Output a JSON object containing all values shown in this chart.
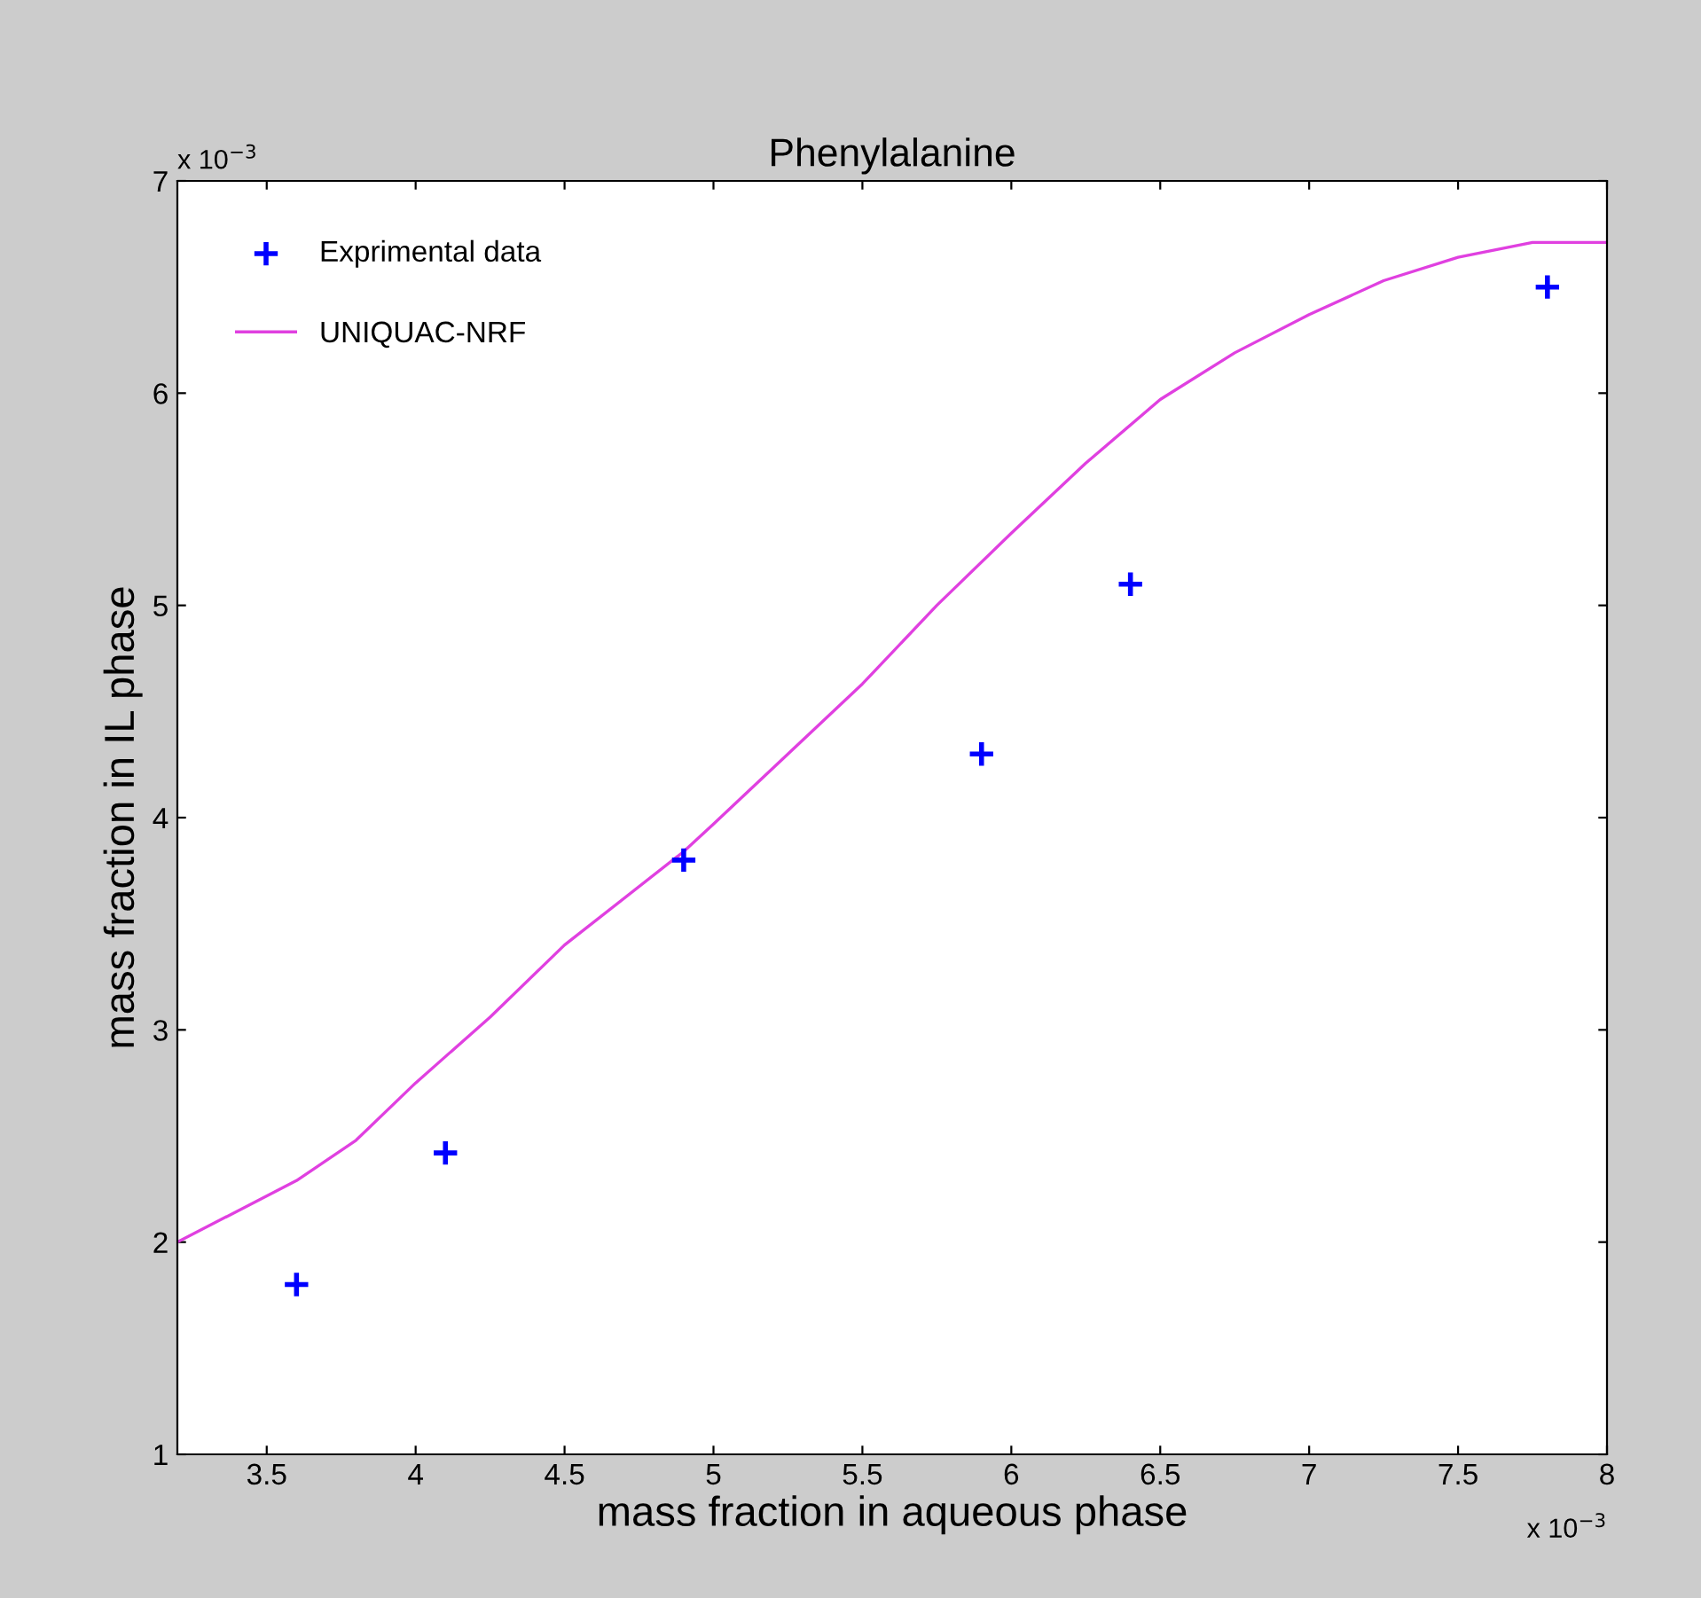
{
  "chart_data": {
    "type": "scatter",
    "title": "Phenylalanine",
    "xlabel": "mass fraction in aqueous phase",
    "ylabel": "mass fraction in IL phase",
    "series": [
      {
        "name": "Exprimental data",
        "color": "#0000ff",
        "marker": "cross",
        "x": [
          3.6,
          4.1,
          4.9,
          5.9,
          6.4,
          7.8
        ],
        "values": [
          1.8,
          2.42,
          3.8,
          4.3,
          5.1,
          6.5
        ]
      },
      {
        "name": "UNIQUAC-NRF",
        "type": "line",
        "color": "#e040e0",
        "marker": "none",
        "line_style": "solid",
        "x": [
          3.2,
          3.6,
          3.8,
          4.0,
          4.25,
          4.5,
          4.9,
          5.0,
          5.25,
          5.5,
          5.75,
          6.0,
          6.25,
          6.5,
          6.75,
          7.0,
          7.25,
          7.5,
          7.75,
          8.0
        ],
        "values": [
          2.0,
          2.29,
          2.48,
          2.75,
          3.06,
          3.4,
          3.84,
          3.97,
          4.3,
          4.63,
          5.0,
          5.34,
          5.67,
          5.97,
          6.19,
          6.37,
          6.53,
          6.64,
          6.71,
          6.71
        ]
      }
    ],
    "xlim": [
      3.2,
      8
    ],
    "ylim": [
      1,
      7
    ],
    "xticks": [
      3.5,
      4,
      4.5,
      5,
      5.5,
      6,
      6.5,
      7,
      7.5,
      8
    ],
    "yticks": [
      1,
      2,
      3,
      4,
      5,
      6,
      7
    ],
    "annotations": [
      "x 10$^{−3}$",
      "x 10$^{−3}$"
    ],
    "legend": "top left",
    "grid": false
  }
}
